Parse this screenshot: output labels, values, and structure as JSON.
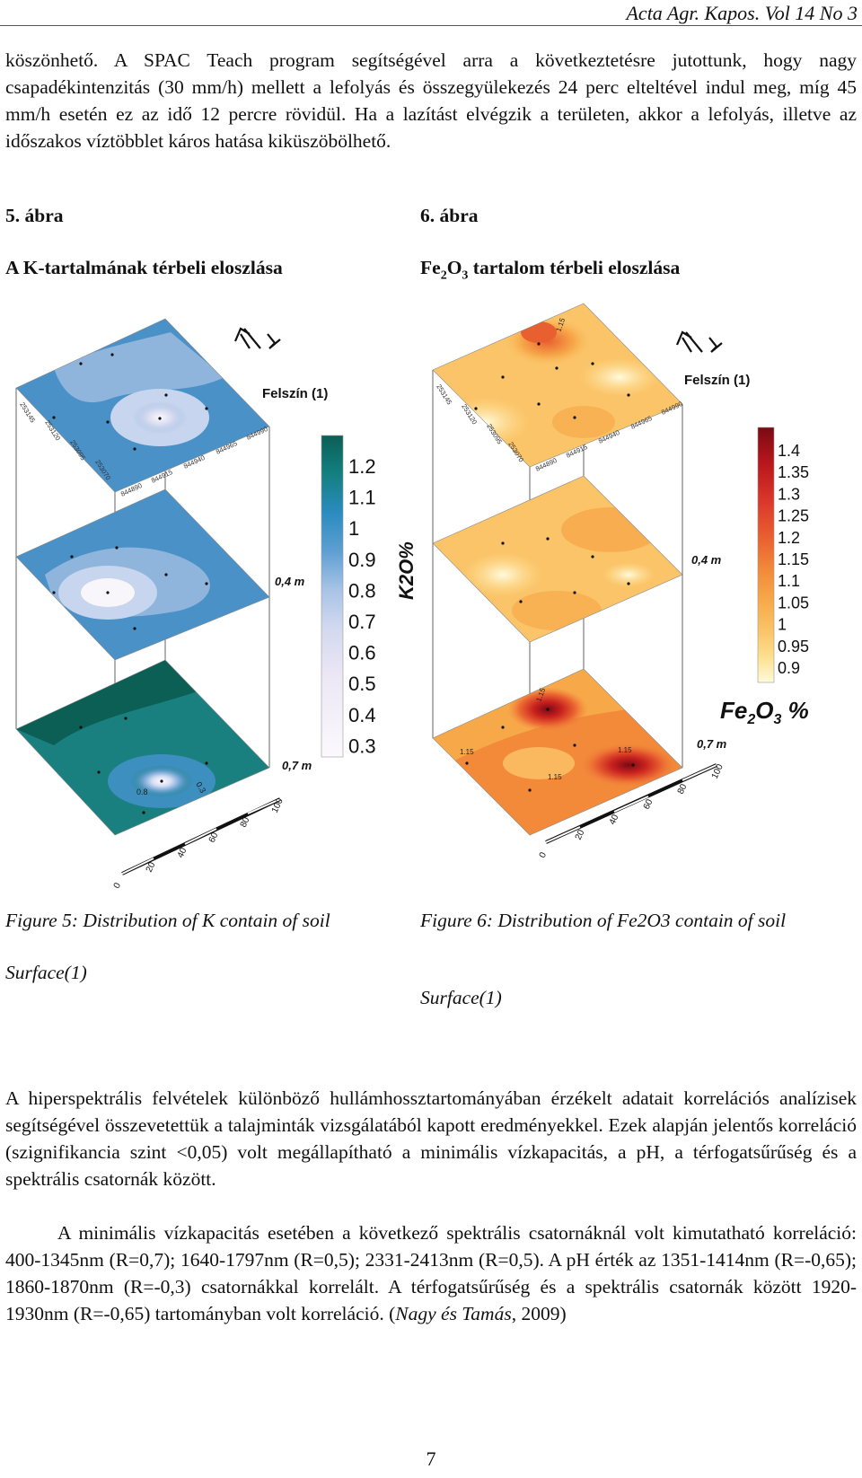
{
  "header": {
    "journal": "Acta Agr. Kapos. Vol 14 No 3"
  },
  "paragraph1": "köszönhető. A SPAC Teach program segítségével arra a következtetésre jutottunk, hogy nagy csapadékintenzitás (30 mm/h) mellett a lefolyás és összegyülekezés 24 perc elteltével indul meg, míg 45 mm/h esetén ez az idő 12 percre rövidül. Ha a lazítást elvégzik a területen, akkor a lefolyás, illetve az időszakos víztöbblet káros hatása kiküszöbölhető.",
  "figure5": {
    "number": "5. ábra",
    "title": "A K-tartalmának térbeli eloszlása",
    "caption": "Figure 5: Distribution of K contain of soil",
    "caption_sub": "Surface(1)",
    "legend_title": "K2O%",
    "legend_values": [
      "1.2",
      "1.1",
      "1",
      "0.9",
      "0.8",
      "0.7",
      "0.6",
      "0.5",
      "0.4",
      "0.3"
    ],
    "layer_labels": [
      "Felszín (1)",
      "0,4 m",
      "0,7 m"
    ],
    "contour_labels": [
      "0.8",
      "0.3"
    ],
    "colors": [
      "#0b5f55",
      "#1a7f7f",
      "#4a91c8",
      "#8fb5dc",
      "#c7d5ee",
      "#e8e4f4",
      "#f8f5fb"
    ]
  },
  "figure6": {
    "number": "6. ábra",
    "title_parts": {
      "a": "Fe",
      "b": "2",
      "c": "O",
      "d": "3",
      "e": " tartalom térbeli eloszlása"
    },
    "caption": "Figure 6: Distribution of Fe2O3 contain of soil",
    "caption_sub": "Surface(1)",
    "legend_title_parts": {
      "a": "Fe",
      "b": "2",
      "c": "O",
      "d": "3",
      "e": " %"
    },
    "legend_values": [
      "1.4",
      "1.35",
      "1.3",
      "1.25",
      "1.2",
      "1.15",
      "1.1",
      "1.05",
      "1",
      "0.95",
      "0.9"
    ],
    "layer_labels": [
      "Felszín (1)",
      "0,4 m",
      "0,7 m"
    ],
    "contour_labels": [
      "1.15",
      "1.15",
      "1.15",
      "1.15",
      "1.15"
    ],
    "colors": [
      "#7a0a14",
      "#b8161c",
      "#d9352a",
      "#e85c2f",
      "#f28a3a",
      "#f7a94a",
      "#fbc468",
      "#fde08f",
      "#fff2b5",
      "#fffad8"
    ]
  },
  "map_axis": {
    "easting_ticks": [
      "844890",
      "844915",
      "844940",
      "844965",
      "844990"
    ],
    "northing_ticks": [
      "253145",
      "253120",
      "253095",
      "253070"
    ],
    "scale_ticks": [
      "0",
      "20",
      "40",
      "60",
      "80",
      "100"
    ],
    "north_symbol": "N"
  },
  "paragraph2": "A hiperspektrális felvételek különböző hullámhossztartományában érzékelt adatait korrelációs analízisek segítségével összevetettük a talajminták vizsgálatából kapott eredményekkel. Ezek alapján jelentős korreláció (szignifikancia szint <0,05) volt megállapítható a minimális vízkapacitás, a pH, a térfogatsűrűség és a spektrális csatornák között.",
  "paragraph3_main": "A minimális vízkapacitás esetében a következő spektrális csatornáknál volt kimutatható korreláció: 400-1345nm (R=0,7); 1640-1797nm (R=0,5); 2331-2413nm (R=0,5). A pH érték az 1351-1414nm (R=-0,65); 1860-1870nm (R=-0,3) csatornákkal korrelált. A térfogatsűrűség és a spektrális csatornák között 1920-1930nm (R=-0,65) tartományban volt korreláció. (",
  "paragraph3_cite": "Nagy és Tamás",
  "paragraph3_end": ", 2009)",
  "page_number": "7"
}
